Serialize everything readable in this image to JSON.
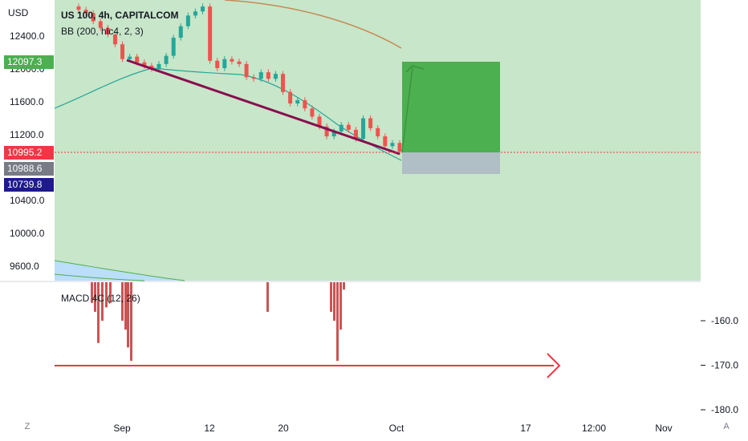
{
  "header": {
    "currency": "USD",
    "symbol_line": "US 100, 4h, CAPITALCOM",
    "indicator_line": "BB (200, hlc4, 2, 3)"
  },
  "macd": {
    "label": "MACD 4C (12, 26)"
  },
  "price_badges": [
    {
      "value": "12097.3",
      "color": "#4caf50"
    },
    {
      "value": "10995.2",
      "color": "#f23645"
    },
    {
      "value": "10988.6",
      "color": "#787b86"
    },
    {
      "value": "10739.8",
      "color": "#1e1a8c"
    }
  ],
  "price_axis": {
    "ticks": [
      {
        "label": "12400.0",
        "value": 12400
      },
      {
        "label": "12000.0",
        "value": 12000
      },
      {
        "label": "11600.0",
        "value": 11600
      },
      {
        "label": "11200.0",
        "value": 11200
      },
      {
        "label": "10400.0",
        "value": 10400
      },
      {
        "label": "10000.0",
        "value": 10000
      },
      {
        "label": "9600.0",
        "value": 9600
      }
    ]
  },
  "macd_axis": {
    "ticks": [
      {
        "label": "-160.0",
        "value": -160
      },
      {
        "label": "-170.0",
        "value": -170
      },
      {
        "label": "-180.0",
        "value": -180
      }
    ]
  },
  "time_axis": {
    "ticks": [
      "Sep",
      "12",
      "20",
      "Oct",
      "17",
      "12:00",
      "Nov"
    ]
  },
  "corner_buttons": {
    "left": "Z",
    "right": "A"
  },
  "colors": {
    "bg_green": "#c8e6c9",
    "target": "#4caf50",
    "stop": "#b0bec5",
    "bull": "#26a69a",
    "bear": "#ef5350",
    "trendline": "#880e4f",
    "arrow": "#f23645"
  },
  "chart_data": [
    {
      "type": "candlestick",
      "title": "US 100, 4h, CAPITALCOM",
      "ylabel": "USD",
      "ylim": [
        9450,
        12800
      ],
      "series": [
        {
          "name": "price",
          "values": [
            12720,
            12680,
            12580,
            12500,
            12420,
            12300,
            12120,
            12150,
            12080,
            12040,
            12000,
            12060,
            12160,
            12380,
            12520,
            12650,
            12700,
            12760,
            12100,
            12010,
            12120,
            12090,
            12060,
            11900,
            11880,
            11960,
            11880,
            11940,
            11720,
            11580,
            11620,
            11520,
            11420,
            11300,
            11180,
            11240,
            11320,
            11260,
            11150,
            11400,
            11280,
            11180,
            11060,
            11100,
            10995.2
          ]
        }
      ],
      "annotations": {
        "last_price": 10995.2,
        "target": 12097.3,
        "stop": 10739.8
      }
    },
    {
      "type": "bar",
      "title": "MACD 4C (12, 26)",
      "ylim": [
        -182,
        -151
      ],
      "reference_line": -170
    }
  ]
}
